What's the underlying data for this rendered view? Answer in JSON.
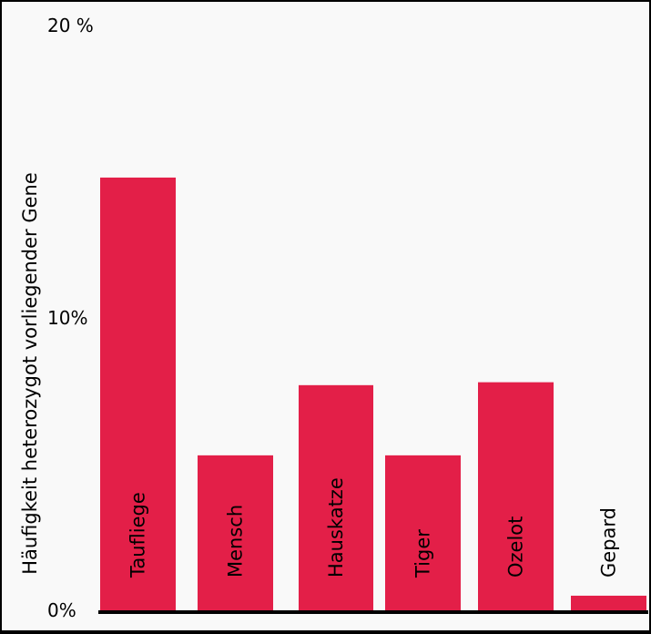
{
  "chart_data": {
    "type": "bar",
    "ylabel": "Häufigkeit heterozygot vorliegender Gene",
    "yticks": [
      "20 %",
      "10%",
      "0%"
    ],
    "ytick_values": [
      20,
      10,
      0
    ],
    "ylim": [
      0,
      20
    ],
    "categories": [
      "Taufliege",
      "Mensch",
      "Hauskatze",
      "Tiger",
      "Ozelot",
      "Gepard"
    ],
    "values": [
      14.8,
      5.3,
      7.7,
      5.3,
      7.8,
      0.5
    ],
    "bar_color": "#e31f48",
    "grid": false,
    "legend": "none"
  }
}
